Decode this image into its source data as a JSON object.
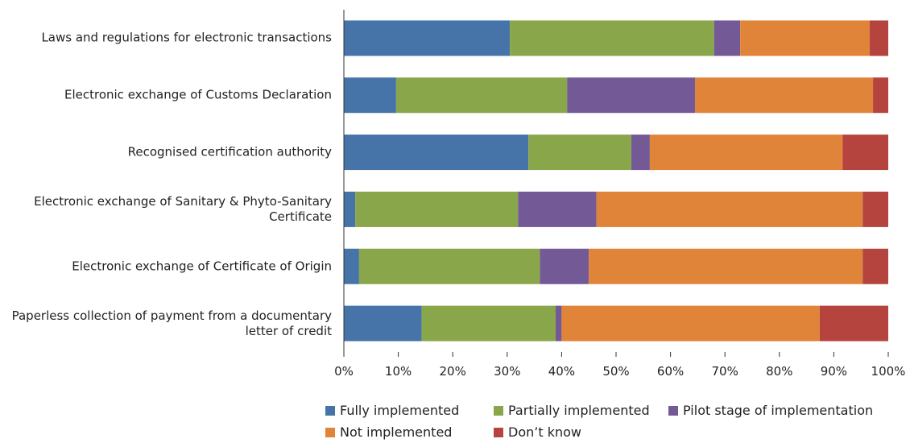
{
  "chart_data": {
    "type": "bar",
    "orientation": "horizontal",
    "stacked": true,
    "categories": [
      "Laws and regulations for electronic transactions",
      "Electronic exchange of Customs Declaration",
      "Recognised certification authority",
      "Electronic exchange of Sanitary & Phyto-Sanitary Certificate",
      "Electronic exchange of Certificate of Origin",
      "Paperless collection of payment from a documentary letter of credit"
    ],
    "series": [
      {
        "name": "Fully implemented",
        "color": "#4674a9",
        "values": [
          30.5,
          9.6,
          33.9,
          2.1,
          2.8,
          14.3
        ]
      },
      {
        "name": "Partially implemented",
        "color": "#8aa64b",
        "values": [
          37.5,
          31.4,
          18.9,
          29.9,
          33.2,
          24.6
        ]
      },
      {
        "name": "Pilot stage of implementation",
        "color": "#735a96",
        "values": [
          4.8,
          23.5,
          3.4,
          14.4,
          9.0,
          1.1
        ]
      },
      {
        "name": "Not implemented",
        "color": "#e0843a",
        "values": [
          23.8,
          32.7,
          35.4,
          48.9,
          50.3,
          47.4
        ]
      },
      {
        "name": "Don’t know",
        "color": "#b5443f",
        "values": [
          3.4,
          2.8,
          8.4,
          4.7,
          4.7,
          12.6
        ]
      }
    ],
    "xlim": [
      0,
      100
    ],
    "xticks": [
      {
        "value": 0,
        "label": "0%"
      },
      {
        "value": 10,
        "label": "10%"
      },
      {
        "value": 20,
        "label": "20%"
      },
      {
        "value": 30,
        "label": "30%"
      },
      {
        "value": 40,
        "label": "40%"
      },
      {
        "value": 50,
        "label": "50%"
      },
      {
        "value": 60,
        "label": "60%"
      },
      {
        "value": 70,
        "label": "70%"
      },
      {
        "value": 80,
        "label": "80%"
      },
      {
        "value": 90,
        "label": "90%"
      },
      {
        "value": 100,
        "label": "100%"
      }
    ],
    "grid": false,
    "legend": "bottom"
  }
}
